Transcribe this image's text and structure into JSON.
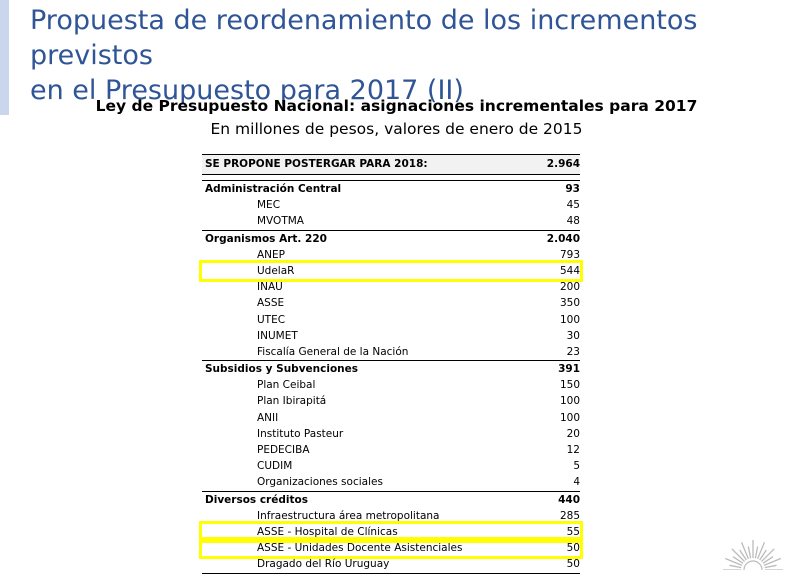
{
  "slide": {
    "title_line1": "Propuesta de reordenamiento de los incrementos previstos",
    "title_line2": "en el Presupuesto para 2017 (II)",
    "accent_color": "#2f5597",
    "highlight_color": "#ffff00"
  },
  "table": {
    "title": "Ley de Presupuesto Nacional: asignaciones incrementales para 2017",
    "subtitle": "En millones de pesos, valores de enero de 2015",
    "header": {
      "label": "SE PROPONE POSTERGAR PARA 2018:",
      "value": "2.964"
    },
    "groups": [
      {
        "label": "Administración Central",
        "value": "93",
        "items": [
          {
            "label": "MEC",
            "value": "45"
          },
          {
            "label": "MVOTMA",
            "value": "48"
          }
        ]
      },
      {
        "label": "Organismos Art. 220",
        "value": "2.040",
        "items": [
          {
            "label": "ANEP",
            "value": "793"
          },
          {
            "label": "UdelaR",
            "value": "544",
            "highlighted": true
          },
          {
            "label": "INAU",
            "value": "200"
          },
          {
            "label": "ASSE",
            "value": "350"
          },
          {
            "label": "UTEC",
            "value": "100"
          },
          {
            "label": "INUMET",
            "value": "30"
          },
          {
            "label": "Fiscalía General de la Nación",
            "value": "23"
          }
        ]
      },
      {
        "label": "Subsidios y Subvenciones",
        "value": "391",
        "items": [
          {
            "label": "Plan Ceibal",
            "value": "150"
          },
          {
            "label": "Plan Ibirapitá",
            "value": "100"
          },
          {
            "label": "ANII",
            "value": "100"
          },
          {
            "label": "Instituto Pasteur",
            "value": "20"
          },
          {
            "label": "PEDECIBA",
            "value": "12"
          },
          {
            "label": "CUDIM",
            "value": "5"
          },
          {
            "label": "Organizaciones sociales",
            "value": "4"
          }
        ]
      },
      {
        "label": "Diversos créditos",
        "value": "440",
        "items": [
          {
            "label": "Infraestructura área metropolitana",
            "value": "285"
          },
          {
            "label": "ASSE - Hospital de Clínicas",
            "value": "55",
            "highlighted": true
          },
          {
            "label": "ASSE - Unidades Docente Asistenciales",
            "value": "50",
            "highlighted": true
          },
          {
            "label": "Dragado del Río Uruguay",
            "value": "50"
          }
        ]
      }
    ]
  }
}
